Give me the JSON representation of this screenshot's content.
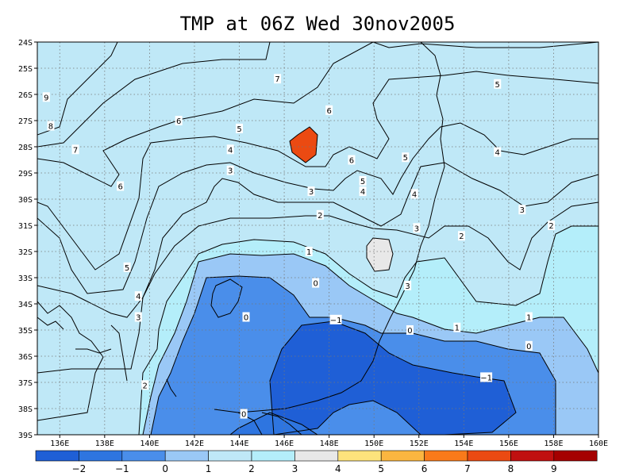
{
  "title": "TMP at 06Z Wed 30nov2005",
  "map": {
    "lon_labels": [
      "136E",
      "138E",
      "140E",
      "142E",
      "144E",
      "146E",
      "148E",
      "150E",
      "152E",
      "154E",
      "156E",
      "158E",
      "160E"
    ],
    "lat_labels": [
      "24S",
      "25S",
      "26S",
      "27S",
      "28S",
      "29S",
      "30S",
      "31S",
      "32S",
      "33S",
      "34S",
      "35S",
      "36S",
      "37S",
      "38S",
      "39S"
    ],
    "bands": [
      {
        "level": "<-2",
        "color": "#1f5fd6"
      },
      {
        "level": "-2",
        "color": "#2e75e0"
      },
      {
        "level": "-1",
        "color": "#4a8eea"
      },
      {
        "level": "0",
        "color": "#9ac8f6"
      },
      {
        "level": "1",
        "color": "#bfe8f7"
      },
      {
        "level": "2",
        "color": "#b4eefa"
      },
      {
        "level": "3",
        "color": "#e8e8e8"
      },
      {
        "level": "4",
        "color": "#fde37c"
      },
      {
        "level": "5",
        "color": "#fbb640"
      },
      {
        "level": "6",
        "color": "#f97a1a"
      },
      {
        "level": "7",
        "color": "#eb4a12"
      },
      {
        "level": "8",
        "color": "#c01010"
      },
      {
        "level": "9",
        "color": "#a50000"
      }
    ],
    "contour_labels": [
      {
        "t": "9",
        "lon": 135.4,
        "lat": 26.1
      },
      {
        "t": "8",
        "lon": 135.6,
        "lat": 27.2
      },
      {
        "t": "7",
        "lon": 136.7,
        "lat": 28.1
      },
      {
        "t": "6",
        "lon": 138.7,
        "lat": 29.5
      },
      {
        "t": "6",
        "lon": 141.3,
        "lat": 27.0
      },
      {
        "t": "7",
        "lon": 145.7,
        "lat": 25.4
      },
      {
        "t": "6",
        "lon": 148.0,
        "lat": 26.6
      },
      {
        "t": "6",
        "lon": 149.0,
        "lat": 28.5
      },
      {
        "t": "5",
        "lon": 144.0,
        "lat": 27.3
      },
      {
        "t": "4",
        "lon": 143.6,
        "lat": 28.1
      },
      {
        "t": "3",
        "lon": 143.6,
        "lat": 28.9
      },
      {
        "t": "5",
        "lon": 149.5,
        "lat": 29.3
      },
      {
        "t": "4",
        "lon": 149.5,
        "lat": 29.7
      },
      {
        "t": "5",
        "lon": 151.4,
        "lat": 28.4
      },
      {
        "t": "4",
        "lon": 151.8,
        "lat": 29.8
      },
      {
        "t": "3",
        "lon": 147.2,
        "lat": 29.7
      },
      {
        "t": "5",
        "lon": 155.5,
        "lat": 25.6
      },
      {
        "t": "4",
        "lon": 155.5,
        "lat": 28.2
      },
      {
        "t": "3",
        "lon": 156.6,
        "lat": 30.4
      },
      {
        "t": "2",
        "lon": 157.9,
        "lat": 31.0
      },
      {
        "t": "2",
        "lon": 147.6,
        "lat": 30.6
      },
      {
        "t": "3",
        "lon": 151.9,
        "lat": 31.1
      },
      {
        "t": "2",
        "lon": 153.9,
        "lat": 31.4
      },
      {
        "t": "1",
        "lon": 147.1,
        "lat": 32.0
      },
      {
        "t": "0",
        "lon": 147.4,
        "lat": 33.2
      },
      {
        "t": "3",
        "lon": 151.5,
        "lat": 33.3
      },
      {
        "t": "5",
        "lon": 139.0,
        "lat": 32.6
      },
      {
        "t": "4",
        "lon": 139.5,
        "lat": 33.7
      },
      {
        "t": "3",
        "lon": 139.5,
        "lat": 34.5
      },
      {
        "t": "0",
        "lon": 144.3,
        "lat": 34.5
      },
      {
        "t": "−1",
        "lon": 148.3,
        "lat": 34.6
      },
      {
        "t": "0",
        "lon": 151.6,
        "lat": 35.0
      },
      {
        "t": "1",
        "lon": 153.7,
        "lat": 34.9
      },
      {
        "t": "1",
        "lon": 156.9,
        "lat": 34.5
      },
      {
        "t": "0",
        "lon": 156.9,
        "lat": 35.6
      },
      {
        "t": "−1",
        "lon": 155.0,
        "lat": 36.8
      },
      {
        "t": "2",
        "lon": 139.8,
        "lat": 37.1
      },
      {
        "t": "0",
        "lon": 144.2,
        "lat": 38.2
      }
    ]
  },
  "colorbar": {
    "labels": [
      "−2",
      "−1",
      "0",
      "1",
      "2",
      "3",
      "4",
      "5",
      "6",
      "7",
      "8",
      "9"
    ]
  }
}
